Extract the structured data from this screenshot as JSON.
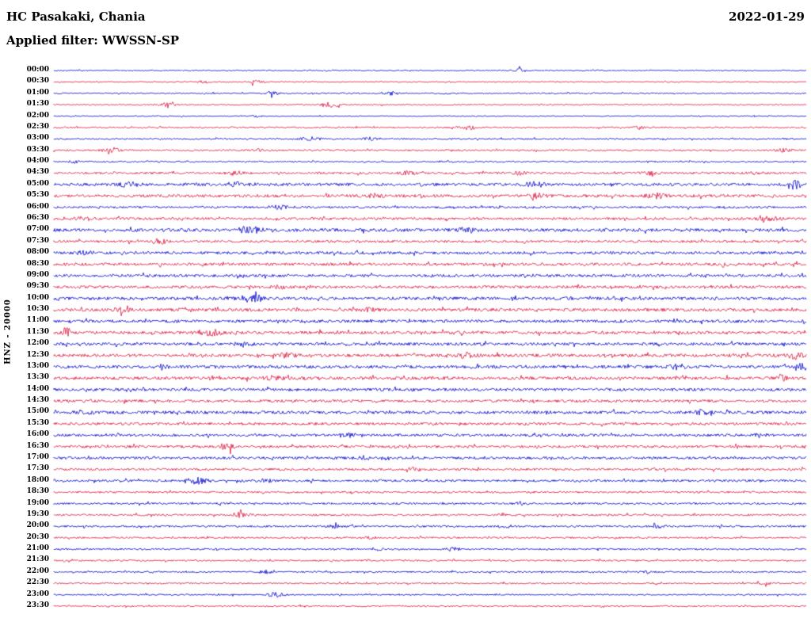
{
  "header": {
    "station": "HC Pasakaki, Chania",
    "date": "2022-01-29",
    "filter": "Applied filter: WWSSN-SP"
  },
  "y_axis": {
    "label": "HNZ - 20000"
  },
  "chart_data": {
    "type": "helicorder",
    "title": "HC Pasakaki, Chania",
    "date": "2022-01-29",
    "filter": "WWSSN-SP",
    "channel": "HNZ",
    "scale": 20000,
    "minutes_per_row": 30,
    "legend_position": "none",
    "grid": false,
    "colors": {
      "blue": "#0000cd",
      "red": "#dc143c"
    },
    "rows": [
      {
        "time": "00:00",
        "color": "blue",
        "amp": 0.7,
        "bursts": [
          {
            "x": 0.62,
            "a": 2.0,
            "w": 5
          }
        ]
      },
      {
        "time": "00:30",
        "color": "red",
        "amp": 0.7,
        "bursts": [
          {
            "x": 0.2,
            "a": 1.8,
            "w": 5
          },
          {
            "x": 0.27,
            "a": 2.2,
            "w": 6
          }
        ]
      },
      {
        "time": "01:00",
        "color": "blue",
        "amp": 0.8,
        "bursts": [
          {
            "x": 0.29,
            "a": 2.5,
            "w": 5
          },
          {
            "x": 0.45,
            "a": 2.0,
            "w": 6
          }
        ]
      },
      {
        "time": "01:30",
        "color": "red",
        "amp": 0.8,
        "bursts": [
          {
            "x": 0.15,
            "a": 2.0,
            "w": 8
          },
          {
            "x": 0.37,
            "a": 3.0,
            "w": 8
          }
        ]
      },
      {
        "time": "02:00",
        "color": "blue",
        "amp": 0.6,
        "bursts": [
          {
            "x": 0.27,
            "a": 1.2,
            "w": 4
          }
        ]
      },
      {
        "time": "02:30",
        "color": "red",
        "amp": 0.9,
        "bursts": [
          {
            "x": 0.55,
            "a": 3.0,
            "w": 8
          },
          {
            "x": 0.78,
            "a": 2.0,
            "w": 6
          }
        ]
      },
      {
        "time": "03:00",
        "color": "blue",
        "amp": 0.9,
        "bursts": [
          {
            "x": 0.34,
            "a": 2.8,
            "w": 8
          },
          {
            "x": 0.42,
            "a": 1.8,
            "w": 5
          }
        ]
      },
      {
        "time": "03:30",
        "color": "red",
        "amp": 1.0,
        "bursts": [
          {
            "x": 0.075,
            "a": 4.5,
            "w": 7
          },
          {
            "x": 0.27,
            "a": 1.5,
            "w": 5
          },
          {
            "x": 0.97,
            "a": 2.5,
            "w": 7
          }
        ]
      },
      {
        "time": "04:00",
        "color": "blue",
        "amp": 0.9,
        "bursts": [
          {
            "x": 0.025,
            "a": 1.8,
            "w": 5
          },
          {
            "x": 0.52,
            "a": 1.3,
            "w": 5
          }
        ]
      },
      {
        "time": "04:30",
        "color": "red",
        "amp": 1.3,
        "bursts": [
          {
            "x": 0.24,
            "a": 2.2,
            "w": 8
          },
          {
            "x": 0.47,
            "a": 2.0,
            "w": 7
          },
          {
            "x": 0.62,
            "a": 1.8,
            "w": 6
          },
          {
            "x": 0.79,
            "a": 2.0,
            "w": 7
          },
          {
            "x": 0.93,
            "a": 2.0,
            "w": 6
          }
        ]
      },
      {
        "time": "05:00",
        "color": "blue",
        "amp": 1.8,
        "bursts": [
          {
            "x": 0.1,
            "a": 2.5,
            "w": 8
          },
          {
            "x": 0.24,
            "a": 2.5,
            "w": 8
          },
          {
            "x": 0.64,
            "a": 3.0,
            "w": 8
          },
          {
            "x": 0.985,
            "a": 6.0,
            "w": 5
          }
        ]
      },
      {
        "time": "05:30",
        "color": "red",
        "amp": 1.8,
        "bursts": [
          {
            "x": 0.42,
            "a": 2.5,
            "w": 8
          },
          {
            "x": 0.64,
            "a": 2.5,
            "w": 8
          },
          {
            "x": 0.8,
            "a": 2.5,
            "w": 8
          }
        ]
      },
      {
        "time": "06:00",
        "color": "blue",
        "amp": 1.3,
        "bursts": [
          {
            "x": 0.3,
            "a": 2.0,
            "w": 7
          }
        ]
      },
      {
        "time": "06:30",
        "color": "red",
        "amp": 1.5,
        "bursts": [
          {
            "x": 0.04,
            "a": 2.5,
            "w": 8
          },
          {
            "x": 0.95,
            "a": 2.5,
            "w": 8
          }
        ]
      },
      {
        "time": "07:00",
        "color": "blue",
        "amp": 2.0,
        "bursts": [
          {
            "x": 0.26,
            "a": 3.5,
            "w": 10
          },
          {
            "x": 0.55,
            "a": 2.5,
            "w": 8
          }
        ]
      },
      {
        "time": "07:30",
        "color": "red",
        "amp": 1.5,
        "bursts": [
          {
            "x": 0.14,
            "a": 3.0,
            "w": 6
          }
        ]
      },
      {
        "time": "08:00",
        "color": "blue",
        "amp": 1.7,
        "bursts": [
          {
            "x": 0.04,
            "a": 2.5,
            "w": 7
          }
        ]
      },
      {
        "time": "08:30",
        "color": "red",
        "amp": 1.7,
        "bursts": [
          {
            "x": 0.89,
            "a": 2.5,
            "w": 7
          }
        ]
      },
      {
        "time": "09:00",
        "color": "blue",
        "amp": 1.7,
        "bursts": []
      },
      {
        "time": "09:30",
        "color": "red",
        "amp": 1.7,
        "bursts": [
          {
            "x": 0.3,
            "a": 2.0,
            "w": 6
          }
        ]
      },
      {
        "time": "10:00",
        "color": "blue",
        "amp": 1.9,
        "bursts": [
          {
            "x": 0.27,
            "a": 3.0,
            "w": 9
          }
        ]
      },
      {
        "time": "10:30",
        "color": "red",
        "amp": 1.9,
        "bursts": [
          {
            "x": 0.09,
            "a": 2.5,
            "w": 7
          },
          {
            "x": 0.42,
            "a": 2.0,
            "w": 6
          }
        ]
      },
      {
        "time": "11:00",
        "color": "blue",
        "amp": 1.8,
        "bursts": []
      },
      {
        "time": "11:30",
        "color": "red",
        "amp": 1.9,
        "bursts": [
          {
            "x": 0.018,
            "a": 5.5,
            "w": 6
          },
          {
            "x": 0.21,
            "a": 3.5,
            "w": 9
          }
        ]
      },
      {
        "time": "12:00",
        "color": "blue",
        "amp": 1.8,
        "bursts": [
          {
            "x": 0.25,
            "a": 2.5,
            "w": 8
          }
        ]
      },
      {
        "time": "12:30",
        "color": "red",
        "amp": 1.9,
        "bursts": [
          {
            "x": 0.31,
            "a": 2.5,
            "w": 7
          },
          {
            "x": 0.55,
            "a": 3.5,
            "w": 8
          },
          {
            "x": 0.985,
            "a": 4.5,
            "w": 6
          }
        ]
      },
      {
        "time": "13:00",
        "color": "blue",
        "amp": 1.9,
        "bursts": [
          {
            "x": 0.145,
            "a": 2.5,
            "w": 7
          },
          {
            "x": 0.83,
            "a": 2.5,
            "w": 7
          },
          {
            "x": 0.995,
            "a": 3.5,
            "w": 5
          }
        ]
      },
      {
        "time": "13:30",
        "color": "red",
        "amp": 1.9,
        "bursts": [
          {
            "x": 0.29,
            "a": 2.5,
            "w": 7
          },
          {
            "x": 0.965,
            "a": 4.0,
            "w": 7
          }
        ]
      },
      {
        "time": "14:00",
        "color": "blue",
        "amp": 1.8,
        "bursts": []
      },
      {
        "time": "14:30",
        "color": "red",
        "amp": 1.7,
        "bursts": []
      },
      {
        "time": "15:00",
        "color": "blue",
        "amp": 1.9,
        "bursts": [
          {
            "x": 0.04,
            "a": 2.5,
            "w": 7
          },
          {
            "x": 0.86,
            "a": 2.5,
            "w": 7
          }
        ]
      },
      {
        "time": "15:30",
        "color": "red",
        "amp": 1.6,
        "bursts": []
      },
      {
        "time": "16:00",
        "color": "blue",
        "amp": 1.6,
        "bursts": [
          {
            "x": 0.39,
            "a": 2.0,
            "w": 7
          },
          {
            "x": 0.94,
            "a": 2.0,
            "w": 6
          }
        ]
      },
      {
        "time": "16:30",
        "color": "red",
        "amp": 1.6,
        "bursts": [
          {
            "x": 0.23,
            "a": 3.5,
            "w": 7
          }
        ]
      },
      {
        "time": "17:00",
        "color": "blue",
        "amp": 1.6,
        "bursts": [
          {
            "x": 0.41,
            "a": 2.0,
            "w": 6
          }
        ]
      },
      {
        "time": "17:30",
        "color": "red",
        "amp": 1.4,
        "bursts": [
          {
            "x": 0.48,
            "a": 2.0,
            "w": 6
          }
        ]
      },
      {
        "time": "18:00",
        "color": "blue",
        "amp": 1.4,
        "bursts": [
          {
            "x": 0.19,
            "a": 3.5,
            "w": 9
          },
          {
            "x": 0.28,
            "a": 2.0,
            "w": 6
          }
        ]
      },
      {
        "time": "18:30",
        "color": "red",
        "amp": 1.2,
        "bursts": []
      },
      {
        "time": "19:00",
        "color": "blue",
        "amp": 1.2,
        "bursts": [
          {
            "x": 0.62,
            "a": 2.0,
            "w": 6
          }
        ]
      },
      {
        "time": "19:30",
        "color": "red",
        "amp": 1.2,
        "bursts": [
          {
            "x": 0.25,
            "a": 3.0,
            "w": 8
          }
        ]
      },
      {
        "time": "20:00",
        "color": "blue",
        "amp": 1.2,
        "bursts": [
          {
            "x": 0.37,
            "a": 2.0,
            "w": 6
          },
          {
            "x": 0.6,
            "a": 2.0,
            "w": 6
          },
          {
            "x": 0.8,
            "a": 2.0,
            "w": 6
          }
        ]
      },
      {
        "time": "20:30",
        "color": "red",
        "amp": 1.1,
        "bursts": [
          {
            "x": 0.42,
            "a": 2.0,
            "w": 6
          }
        ]
      },
      {
        "time": "21:00",
        "color": "blue",
        "amp": 1.1,
        "bursts": [
          {
            "x": 0.43,
            "a": 1.8,
            "w": 5
          },
          {
            "x": 0.53,
            "a": 2.0,
            "w": 6
          }
        ]
      },
      {
        "time": "21:30",
        "color": "red",
        "amp": 1.0,
        "bursts": []
      },
      {
        "time": "22:00",
        "color": "blue",
        "amp": 1.0,
        "bursts": [
          {
            "x": 0.28,
            "a": 1.8,
            "w": 6
          },
          {
            "x": 0.79,
            "a": 2.0,
            "w": 6
          }
        ]
      },
      {
        "time": "22:30",
        "color": "red",
        "amp": 0.9,
        "bursts": [
          {
            "x": 0.945,
            "a": 2.0,
            "w": 5
          }
        ]
      },
      {
        "time": "23:00",
        "color": "blue",
        "amp": 0.9,
        "bursts": [
          {
            "x": 0.295,
            "a": 3.0,
            "w": 7
          }
        ]
      },
      {
        "time": "23:30",
        "color": "red",
        "amp": 0.9,
        "bursts": []
      }
    ]
  }
}
